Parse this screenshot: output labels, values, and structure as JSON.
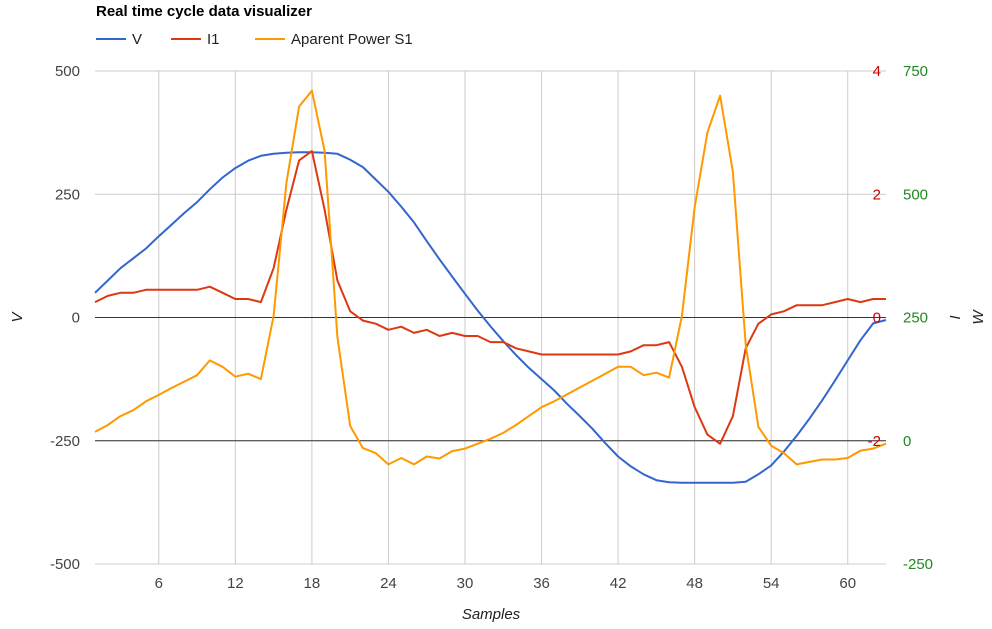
{
  "chart_data": {
    "type": "line",
    "title": "Real time cycle data visualizer",
    "xlabel": "Samples",
    "x": [
      1,
      2,
      3,
      4,
      5,
      6,
      7,
      8,
      9,
      10,
      11,
      12,
      13,
      14,
      15,
      16,
      17,
      18,
      19,
      20,
      21,
      22,
      23,
      24,
      25,
      26,
      27,
      28,
      29,
      30,
      31,
      32,
      33,
      34,
      35,
      36,
      37,
      38,
      39,
      40,
      41,
      42,
      43,
      44,
      45,
      46,
      47,
      48,
      49,
      50,
      51,
      52,
      53,
      54,
      55,
      56,
      57,
      58,
      59,
      60,
      61,
      62,
      63
    ],
    "xticks": [
      6,
      12,
      18,
      24,
      30,
      36,
      42,
      48,
      54,
      60
    ],
    "xlim": [
      1,
      63
    ],
    "axes": [
      {
        "id": "V",
        "label": "V",
        "side": "left",
        "outer": true,
        "ylim": [
          -500,
          500
        ],
        "ticks": [
          -500,
          -250,
          0,
          250,
          500
        ],
        "tick_labels": [
          "-500",
          "-250",
          "0",
          "250",
          "500"
        ],
        "tick_color": "#444444"
      },
      {
        "id": "I",
        "label": "I",
        "side": "right",
        "outer": false,
        "ylim": [
          -4,
          4
        ],
        "ticks": [
          -2,
          0,
          2,
          4
        ],
        "tick_labels": [
          "-2",
          "0",
          "2",
          "4"
        ],
        "tick_color": "#cc0000"
      },
      {
        "id": "W",
        "label": "W",
        "side": "right",
        "outer": true,
        "ylim": [
          -250,
          750
        ],
        "ticks": [
          -250,
          0,
          250,
          500,
          750
        ],
        "tick_labels": [
          "-250",
          "0",
          "250",
          "500",
          "750"
        ],
        "tick_color": "#228822"
      }
    ],
    "series": [
      {
        "name": "V",
        "axis": "V",
        "color": "#3366cc",
        "values": [
          50,
          75,
          100,
          120,
          140,
          165,
          188,
          212,
          234,
          260,
          284,
          303,
          318,
          328,
          332,
          334,
          335,
          335,
          334,
          332,
          320,
          305,
          280,
          255,
          225,
          193,
          155,
          118,
          83,
          48,
          14,
          -18,
          -48,
          -76,
          -102,
          -125,
          -148,
          -175,
          -200,
          -226,
          -255,
          -282,
          -302,
          -318,
          -330,
          -334,
          -335,
          -335,
          -335,
          -335,
          -335,
          -333,
          -318,
          -300,
          -272,
          -240,
          -205,
          -168,
          -128,
          -87,
          -46,
          -12,
          -5
        ]
      },
      {
        "name": "I1",
        "axis": "I",
        "color": "#dc3912",
        "values": [
          0.25,
          0.35,
          0.4,
          0.4,
          0.45,
          0.45,
          0.45,
          0.45,
          0.45,
          0.5,
          0.4,
          0.3,
          0.3,
          0.25,
          0.8,
          1.75,
          2.55,
          2.7,
          1.75,
          0.6,
          0.1,
          -0.05,
          -0.1,
          -0.2,
          -0.15,
          -0.25,
          -0.2,
          -0.3,
          -0.25,
          -0.3,
          -0.3,
          -0.4,
          -0.4,
          -0.5,
          -0.55,
          -0.6,
          -0.6,
          -0.6,
          -0.6,
          -0.6,
          -0.6,
          -0.6,
          -0.55,
          -0.45,
          -0.45,
          -0.4,
          -0.8,
          -1.45,
          -1.9,
          -2.05,
          -1.6,
          -0.5,
          -0.1,
          0.05,
          0.1,
          0.2,
          0.2,
          0.2,
          0.25,
          0.3,
          0.25,
          0.3,
          0.3
        ]
      },
      {
        "name": "Aparent Power S1",
        "axis": "W",
        "color": "#ff9900",
        "values": [
          18,
          32,
          50,
          62,
          80,
          93,
          107,
          120,
          133,
          163,
          150,
          130,
          136,
          125,
          253,
          523,
          678,
          710,
          588,
          210,
          30,
          -15,
          -25,
          -48,
          -35,
          -48,
          -32,
          -36,
          -21,
          -16,
          -6,
          4,
          16,
          32,
          50,
          68,
          80,
          94,
          108,
          122,
          136,
          150,
          150,
          133,
          138,
          128,
          253,
          473,
          625,
          700,
          545,
          195,
          28,
          -10,
          -25,
          -48,
          -43,
          -38,
          -38,
          -35,
          -20,
          -16,
          -6
        ]
      }
    ],
    "legend_position": "top",
    "grid": true
  }
}
